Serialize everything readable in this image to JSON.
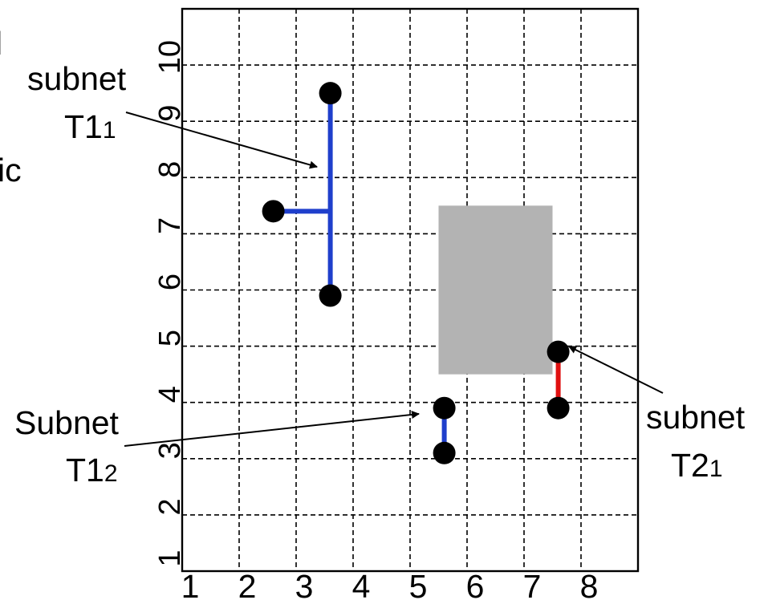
{
  "x_ticks": [
    "1",
    "2",
    "3",
    "4",
    "5",
    "6",
    "7",
    "8"
  ],
  "y_ticks": [
    "1",
    "2",
    "3",
    "4",
    "5",
    "6",
    "7",
    "8",
    "9",
    "10"
  ],
  "edge_text": {
    "top": "l",
    "mid": "ic"
  },
  "subnets": {
    "t11": {
      "line1": "subnet",
      "base": "T1",
      "sub": "1",
      "color": "#1f3fcc",
      "pins": [
        [
          3.6,
          9.5
        ],
        [
          2.6,
          7.4
        ],
        [
          3.6,
          5.9
        ]
      ],
      "segments": [
        [
          [
            3.6,
            9.5
          ],
          [
            3.6,
            5.9
          ]
        ],
        [
          [
            2.6,
            7.4
          ],
          [
            3.6,
            7.4
          ]
        ]
      ]
    },
    "t12": {
      "line1": "Subnet",
      "base": "T1",
      "sub": "2",
      "color": "#1f3fcc",
      "pins": [
        [
          5.6,
          3.9
        ],
        [
          5.6,
          3.1
        ]
      ],
      "segments": [
        [
          [
            5.6,
            3.9
          ],
          [
            5.6,
            3.1
          ]
        ]
      ]
    },
    "t21": {
      "line1": "subnet",
      "base": "T2",
      "sub": "1",
      "color": "#e01010",
      "pins": [
        [
          7.6,
          4.9
        ],
        [
          7.6,
          3.9
        ]
      ],
      "segments": [
        [
          [
            7.6,
            4.9
          ],
          [
            7.6,
            3.9
          ]
        ]
      ]
    }
  },
  "blockage": {
    "x": [
      5.5,
      7.5
    ],
    "y": [
      4.5,
      7.5
    ],
    "color": "#b3b3b3"
  }
}
